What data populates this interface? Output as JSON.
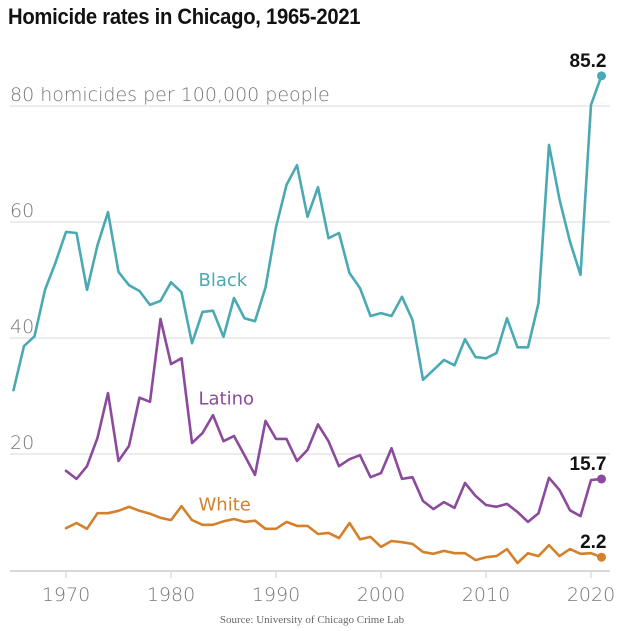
{
  "header": {
    "title": "Homicide rates in Chicago, 1965-2021"
  },
  "footer": {
    "source": "Source: University of Chicago Crime Lab"
  },
  "chart_data": {
    "type": "line",
    "title": "Homicide rates in Chicago, 1965-2021",
    "xlabel": "",
    "ylabel": "homicides per 100,000 people",
    "xlim": [
      1965,
      2021
    ],
    "ylim": [
      0,
      85.2
    ],
    "grid": true,
    "y_ticks": [
      {
        "value": 80,
        "label": "80 homicides per 100,000 people"
      },
      {
        "value": 60,
        "label": "60"
      },
      {
        "value": 40,
        "label": "40"
      },
      {
        "value": 20,
        "label": "20"
      }
    ],
    "x_ticks": [
      1970,
      1980,
      1990,
      2000,
      2010,
      2020
    ],
    "x_tick_labels": [
      "1970",
      "1980",
      "1990",
      "2000",
      "2010",
      "2020"
    ],
    "series": [
      {
        "name": "Black",
        "color": "#4aa9b3",
        "label_year": 1983,
        "label_value": 49,
        "end_label": "85.2",
        "x": [
          1965,
          1966,
          1967,
          1968,
          1969,
          1970,
          1971,
          1972,
          1973,
          1974,
          1975,
          1976,
          1977,
          1978,
          1979,
          1980,
          1981,
          1982,
          1983,
          1984,
          1985,
          1986,
          1987,
          1988,
          1989,
          1990,
          1991,
          1992,
          1993,
          1994,
          1995,
          1996,
          1997,
          1998,
          1999,
          2000,
          2001,
          2002,
          2003,
          2004,
          2005,
          2006,
          2007,
          2008,
          2009,
          2010,
          2011,
          2012,
          2013,
          2014,
          2015,
          2016,
          2017,
          2018,
          2019,
          2020,
          2021
        ],
        "values": [
          31.0,
          38.6,
          40.3,
          48.3,
          53.0,
          58.3,
          58.1,
          48.3,
          56.0,
          61.7,
          51.4,
          49.1,
          48.1,
          45.7,
          46.4,
          49.6,
          47.9,
          39.1,
          44.5,
          44.7,
          40.2,
          46.9,
          43.4,
          42.9,
          48.7,
          59.1,
          66.4,
          69.8,
          60.9,
          66.0,
          57.2,
          58.1,
          51.2,
          48.6,
          43.8,
          44.3,
          43.8,
          47.1,
          43.1,
          32.8,
          34.5,
          36.2,
          35.3,
          39.8,
          36.7,
          36.5,
          37.4,
          43.4,
          38.4,
          38.4,
          46.0,
          73.3,
          63.9,
          56.6,
          50.9,
          80.2,
          85.2
        ]
      },
      {
        "name": "Latino",
        "color": "#8b4a9c",
        "label_year": 1983,
        "label_value": 28.5,
        "end_label": "15.7",
        "x": [
          1970,
          1971,
          1972,
          1973,
          1974,
          1975,
          1976,
          1977,
          1978,
          1979,
          1980,
          1981,
          1982,
          1983,
          1984,
          1985,
          1986,
          1987,
          1988,
          1989,
          1990,
          1991,
          1992,
          1993,
          1994,
          1995,
          1996,
          1997,
          1998,
          1999,
          2000,
          2001,
          2002,
          2003,
          2004,
          2005,
          2006,
          2007,
          2008,
          2009,
          2010,
          2011,
          2012,
          2013,
          2014,
          2015,
          2016,
          2017,
          2018,
          2019,
          2020,
          2021
        ],
        "values": [
          17.1,
          15.7,
          17.9,
          22.8,
          30.5,
          18.8,
          21.4,
          29.7,
          29.0,
          43.3,
          35.5,
          36.5,
          21.9,
          23.6,
          26.7,
          22.2,
          23.1,
          19.8,
          16.4,
          25.7,
          22.6,
          22.6,
          18.8,
          20.7,
          25.1,
          22.2,
          17.9,
          19.1,
          19.8,
          16.0,
          16.7,
          21.0,
          15.7,
          16.0,
          11.9,
          10.5,
          11.7,
          10.7,
          15.0,
          12.8,
          11.2,
          10.9,
          11.4,
          10.0,
          8.3,
          9.8,
          15.9,
          13.8,
          10.3,
          9.3,
          15.5,
          15.7
        ]
      },
      {
        "name": "White",
        "color": "#d4812b",
        "label_year": 1983,
        "label_value": 10.3,
        "end_label": "2.2",
        "x": [
          1970,
          1971,
          1972,
          1973,
          1974,
          1975,
          1976,
          1977,
          1978,
          1979,
          1980,
          1981,
          1982,
          1983,
          1984,
          1985,
          1986,
          1987,
          1988,
          1989,
          1990,
          1991,
          1992,
          1993,
          1994,
          1995,
          1996,
          1997,
          1998,
          1999,
          2000,
          2001,
          2002,
          2003,
          2004,
          2005,
          2006,
          2007,
          2008,
          2009,
          2010,
          2011,
          2012,
          2013,
          2014,
          2015,
          2016,
          2017,
          2018,
          2019,
          2020,
          2021
        ],
        "values": [
          7.2,
          8.1,
          7.1,
          9.8,
          9.8,
          10.2,
          10.9,
          10.2,
          9.7,
          9.0,
          8.6,
          11.0,
          8.6,
          7.8,
          7.8,
          8.4,
          8.8,
          8.3,
          8.5,
          7.1,
          7.1,
          8.3,
          7.6,
          7.6,
          6.2,
          6.4,
          5.5,
          8.1,
          5.3,
          5.7,
          4.0,
          5.0,
          4.8,
          4.5,
          3.1,
          2.8,
          3.3,
          2.9,
          2.9,
          1.7,
          2.2,
          2.4,
          3.6,
          1.2,
          2.9,
          2.4,
          4.3,
          2.4,
          3.6,
          2.8,
          2.9,
          2.2
        ]
      }
    ]
  }
}
